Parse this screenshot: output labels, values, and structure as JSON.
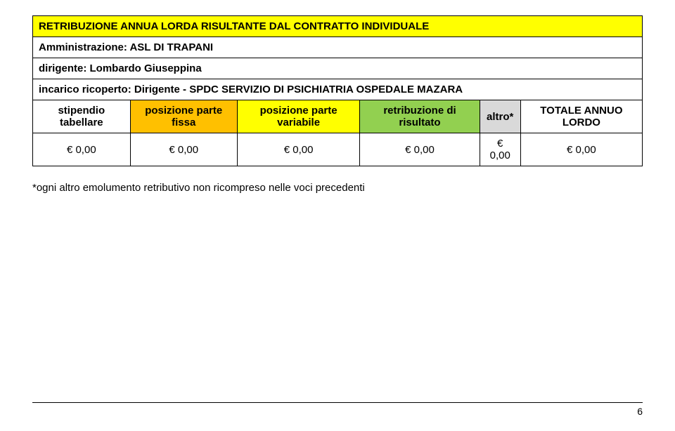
{
  "title": "RETRIBUZIONE ANNUA LORDA RISULTANTE DAL CONTRATTO INDIVIDUALE",
  "labels": {
    "amministrazione": "Amministrazione: ASL DI TRAPANI",
    "dirigente": "dirigente: Lombardo Giuseppina",
    "incarico": "incarico ricoperto: Dirigente - SPDC SERVIZIO DI PSICHIATRIA OSPEDALE MAZARA"
  },
  "columns": [
    {
      "label": "stipendio tabellare",
      "bg": "#ffffff"
    },
    {
      "label": "posizione parte fissa",
      "bg": "#ffc000"
    },
    {
      "label": "posizione parte variabile",
      "bg": "#ffff00"
    },
    {
      "label": "retribuzione di risultato",
      "bg": "#92d050"
    },
    {
      "label": "altro*",
      "bg": "#d9d9d9"
    },
    {
      "label": "TOTALE ANNUO LORDO",
      "bg": "#ffffff"
    }
  ],
  "values": [
    "€ 0,00",
    "€ 0,00",
    "€ 0,00",
    "€ 0,00",
    "€ 0,00",
    "€ 0,00"
  ],
  "footnote": "*ogni altro emolumento retributivo non ricompreso nelle voci precedenti",
  "page_number": "6",
  "colors": {
    "title_bg": "#ffff00"
  }
}
